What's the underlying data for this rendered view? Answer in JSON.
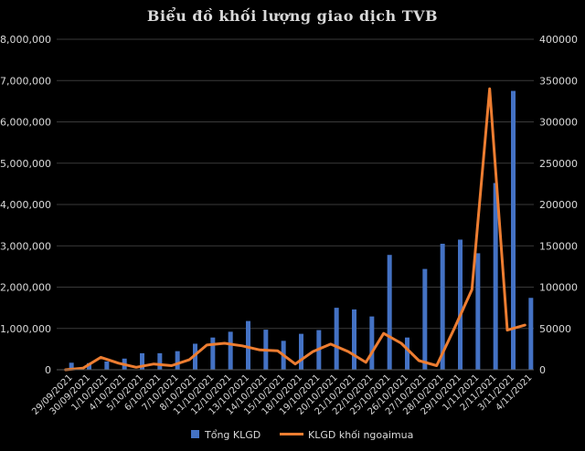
{
  "chart_data": {
    "type": "bar+line",
    "title": "Biểu đồ khối lượng giao dịch TVB",
    "categories": [
      "29/09/2021",
      "30/09/2021",
      "1/10/2021",
      "4/10/2021",
      "5/10/2021",
      "6/10/2021",
      "7/10/2021",
      "8/10/2021",
      "11/10/2021",
      "12/10/2021",
      "13/10/2021",
      "14/10/2021",
      "15/10/2021",
      "18/10/2021",
      "19/10/2021",
      "20/10/2021",
      "21/10/2021",
      "22/10/2021",
      "25/10/2021",
      "26/10/2021",
      "27/10/2021",
      "28/10/2021",
      "29/10/2021",
      "1/11/2021",
      "2/11/2021",
      "3/11/2021",
      "4/11/2021"
    ],
    "series": [
      {
        "name": "Tổng KLGD",
        "type": "bar",
        "axis": "left",
        "color": "#4472c4",
        "values": [
          170000,
          160000,
          200000,
          270000,
          400000,
          400000,
          450000,
          630000,
          780000,
          920000,
          1180000,
          970000,
          700000,
          870000,
          960000,
          1500000,
          1460000,
          1290000,
          2780000,
          780000,
          2440000,
          3050000,
          3150000,
          2820000,
          4520000,
          6750000,
          1740000
        ]
      },
      {
        "name": "KLGD khối ngoạimua",
        "type": "line",
        "axis": "right",
        "color": "#ed7d31",
        "values": [
          0,
          2000,
          15000,
          8000,
          3000,
          7000,
          5000,
          12000,
          30000,
          32000,
          29000,
          24000,
          23000,
          7000,
          22000,
          31000,
          22000,
          9000,
          44000,
          32000,
          11000,
          5000,
          50000,
          97000,
          340000,
          48000,
          54000
        ]
      }
    ],
    "y_left": {
      "min": 0,
      "max": 8000000,
      "step": 1000000,
      "ticks": [
        "0",
        "1,000,000",
        "2,000,000",
        "3,000,000",
        "4,000,000",
        "5,000,000",
        "6,000,000",
        "7,000,000",
        "8,000,000"
      ]
    },
    "y_right": {
      "min": 0,
      "max": 400000,
      "step": 50000,
      "ticks": [
        "0",
        "50000",
        "100000",
        "150000",
        "200000",
        "250000",
        "300000",
        "350000",
        "400000"
      ]
    },
    "grid": true,
    "legend_position": "bottom",
    "colors": {
      "background": "#000000",
      "text": "#d9d9d9",
      "grid": "#3a3a3a"
    }
  }
}
